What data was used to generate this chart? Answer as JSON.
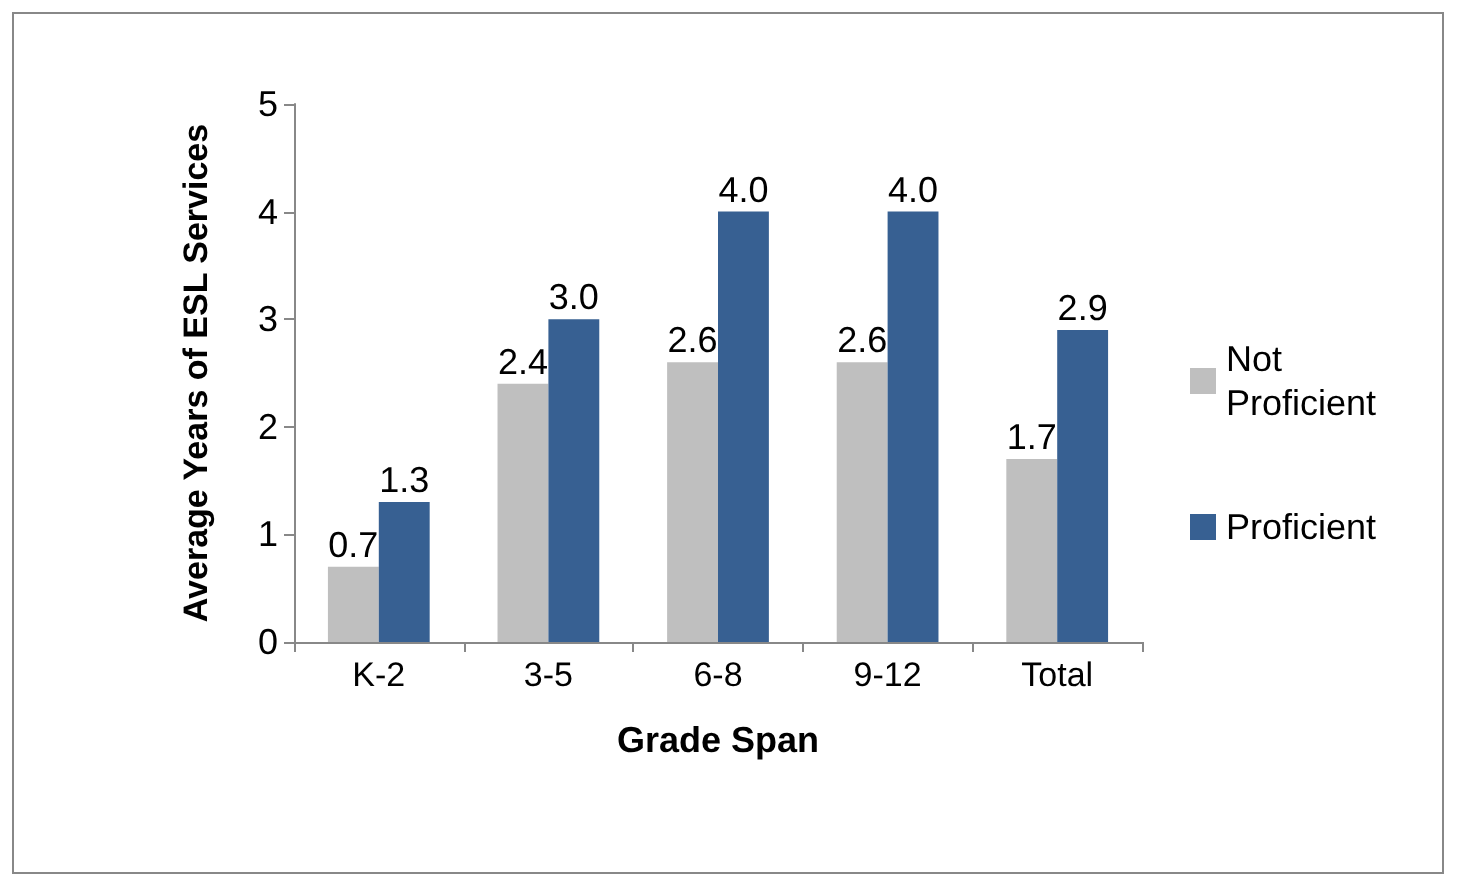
{
  "chart_data": {
    "type": "bar",
    "xlabel": "Grade Span",
    "ylabel": "Average Years of ESL Services",
    "categories": [
      "K-2",
      "3-5",
      "6-8",
      "9-12",
      "Total"
    ],
    "series": [
      {
        "name": "Not Proficient",
        "color": "#bfbfbf",
        "values": [
          0.7,
          2.4,
          2.6,
          2.6,
          1.7
        ],
        "value_labels": [
          "0.7",
          "2.4",
          "2.6",
          "2.6",
          "1.7"
        ]
      },
      {
        "name": "Proficient",
        "color": "#376092",
        "values": [
          1.3,
          3,
          4,
          4,
          2.9
        ],
        "value_labels": [
          "1.3",
          "3.0",
          "4.0",
          "4.0",
          "2.9"
        ]
      }
    ],
    "ylim": [
      0,
      5
    ],
    "yticks": [
      0,
      1,
      2,
      3,
      4,
      5
    ],
    "grid": false,
    "legend": "right"
  }
}
